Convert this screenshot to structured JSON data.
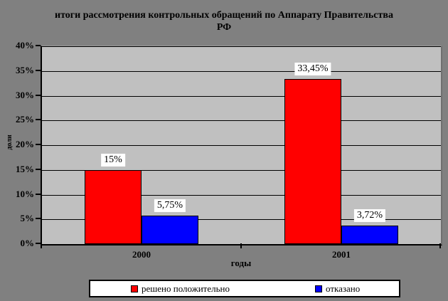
{
  "palette": {
    "canvas_background": "#808080",
    "plot_background": "#c0c0c0",
    "grid_color": "#000000",
    "label_box_background": "#ffffff"
  },
  "title": {
    "line1": "итоги рассмотрения контрольных обращений по Аппарату Правительства",
    "line2": "РФ"
  },
  "chart_data": {
    "type": "bar",
    "title": "итоги рассмотрения контрольных обращений по Аппарату Правительства РФ",
    "categories": [
      "2000",
      "2001"
    ],
    "series": [
      {
        "name": "решено положительно",
        "color": "#ff0000",
        "values": [
          15,
          33.45
        ],
        "labels": [
          "15%",
          "33,45%"
        ]
      },
      {
        "name": "отказано",
        "color": "#0000ff",
        "values": [
          5.75,
          3.72
        ],
        "labels": [
          "5,75%",
          "3,72%"
        ]
      }
    ],
    "xlabel": "годы",
    "ylabel": "доли",
    "ylim": [
      0,
      40
    ],
    "yticks": [
      0,
      5,
      10,
      15,
      20,
      25,
      30,
      35,
      40
    ],
    "ytick_labels": [
      "0%",
      "5%",
      "10%",
      "15%",
      "20%",
      "25%",
      "30%",
      "35%",
      "40%"
    ],
    "grid": true,
    "legend_position": "bottom"
  }
}
